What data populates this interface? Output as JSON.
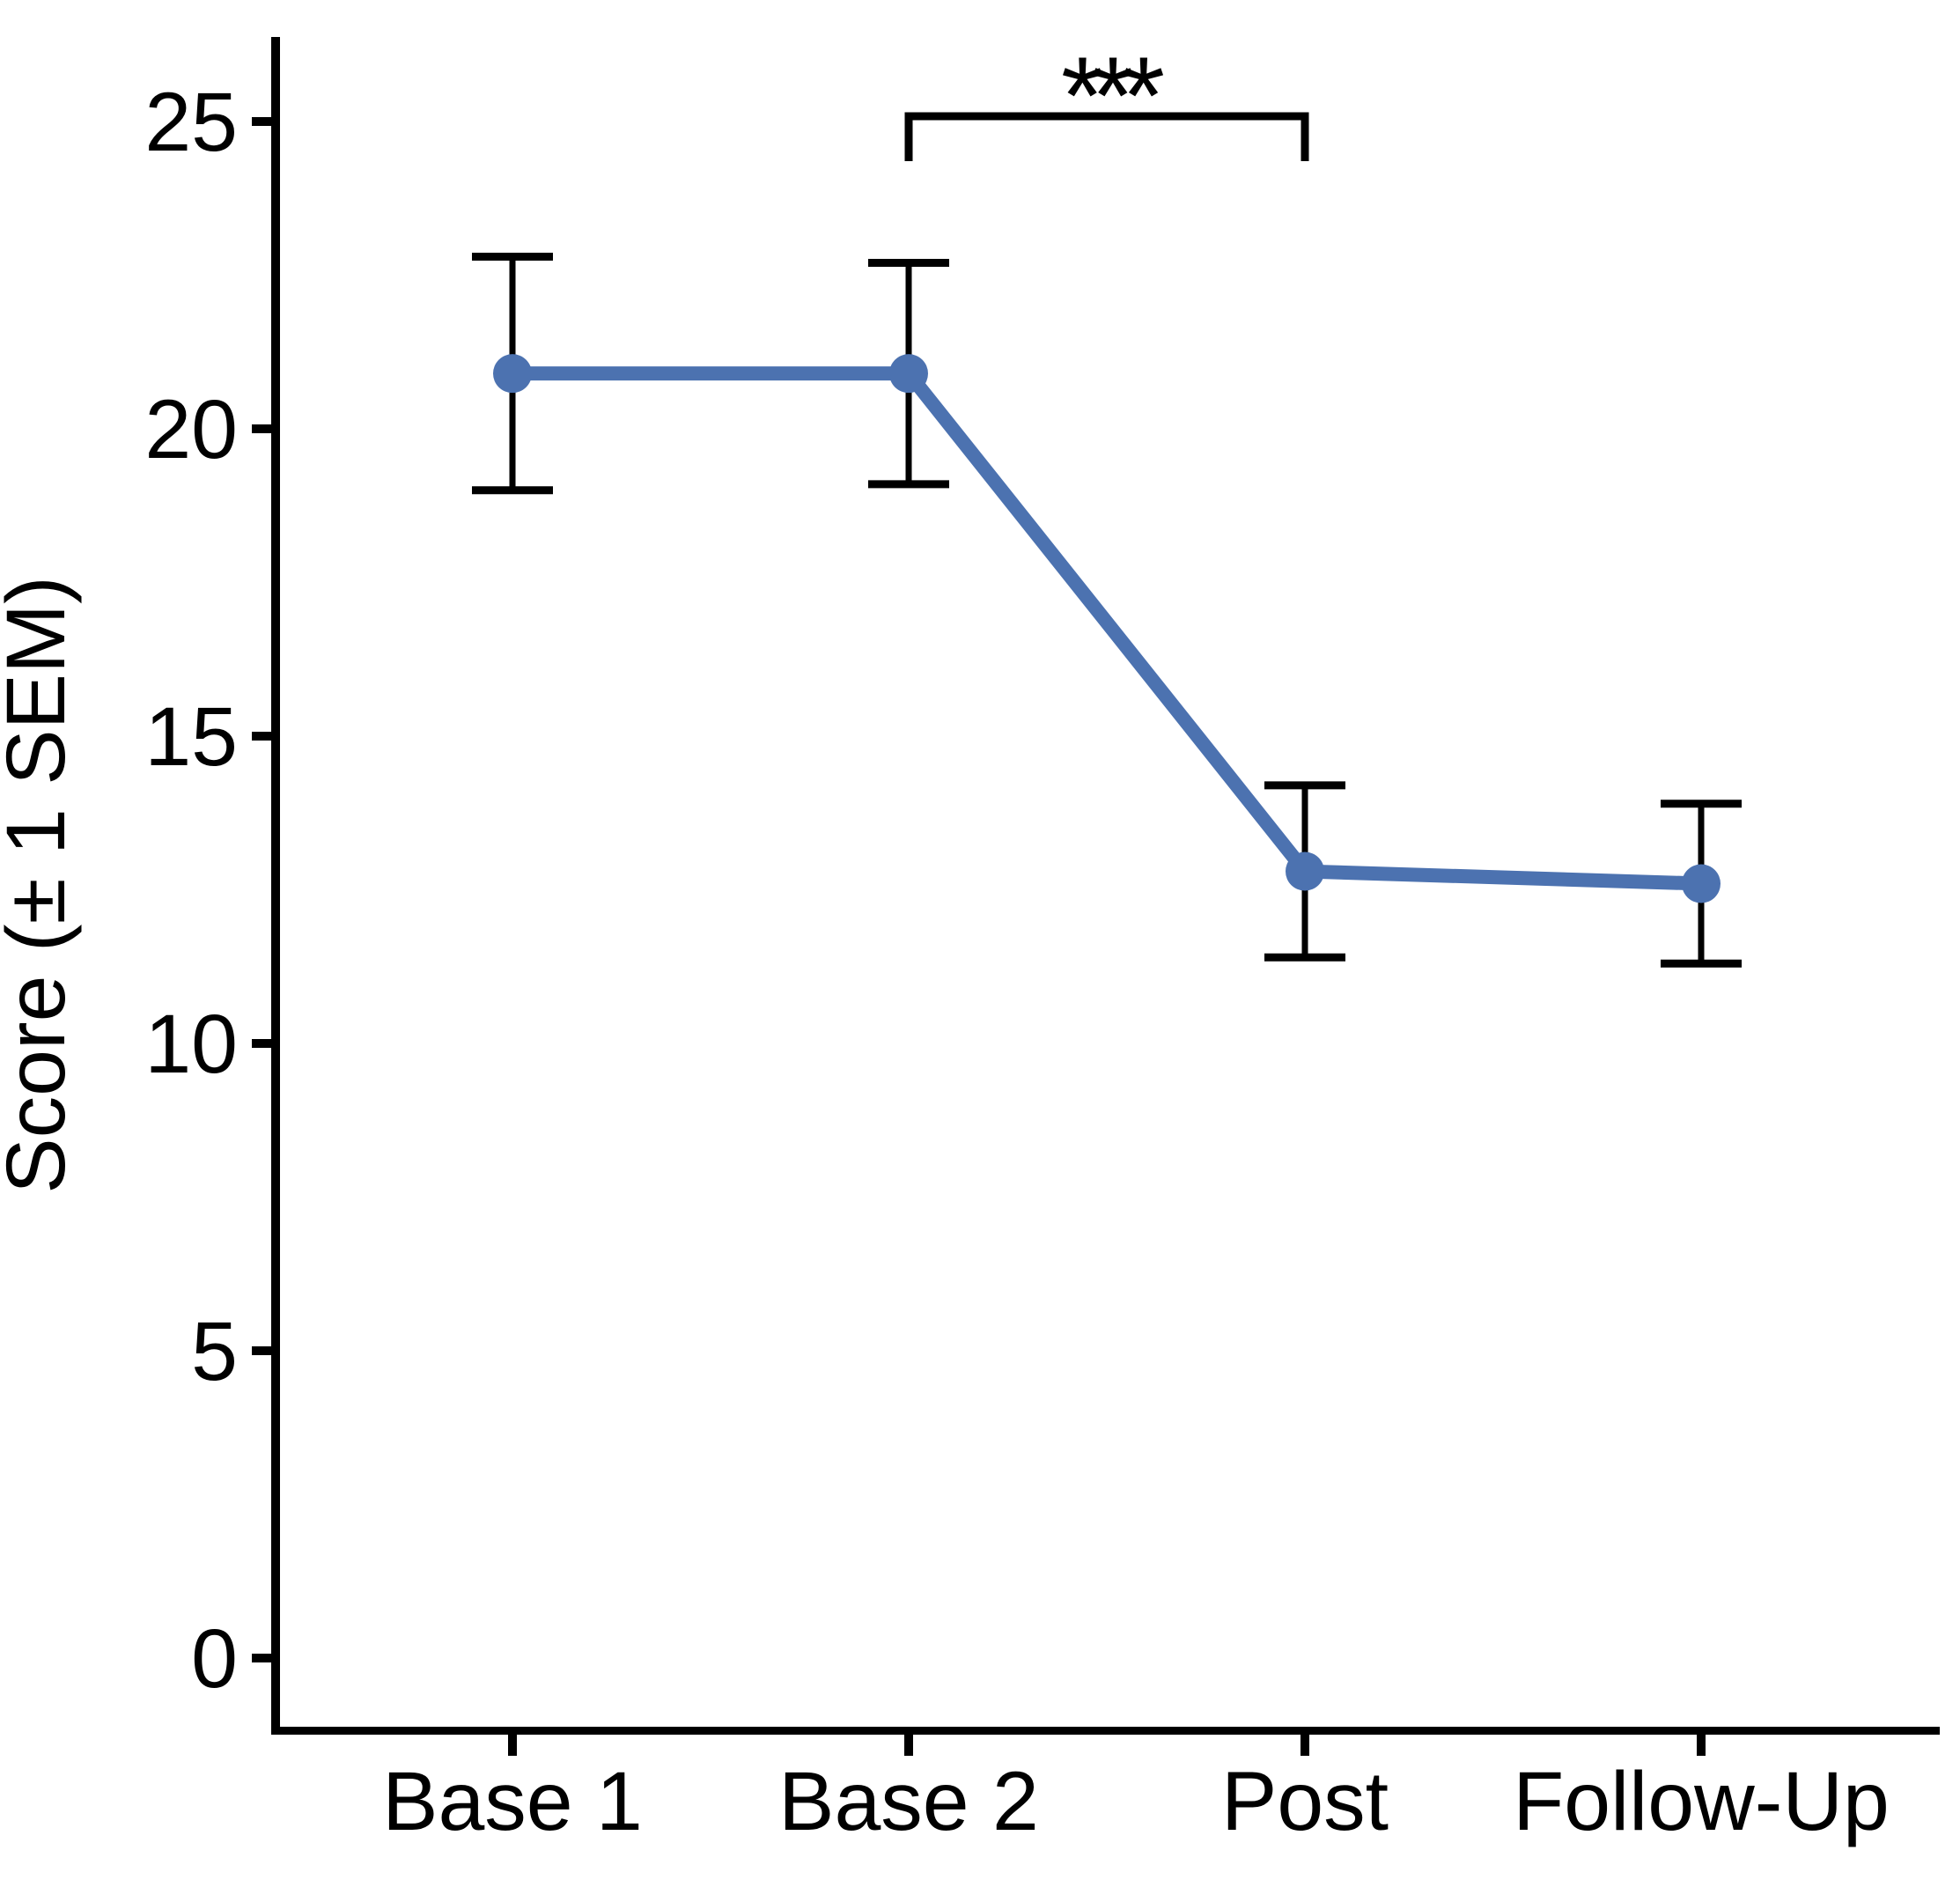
{
  "chart_data": {
    "type": "line",
    "title": "",
    "xlabel": "",
    "ylabel": "Score (± 1 SEM)",
    "categories": [
      "Base 1",
      "Base 2",
      "Post",
      "Follow-Up"
    ],
    "series": [
      {
        "name": "Score",
        "marker": "circle",
        "values": [
          20.9,
          20.9,
          12.8,
          12.6
        ],
        "error_upper": [
          22.8,
          22.7,
          14.2,
          13.9
        ],
        "error_lower": [
          19.0,
          19.1,
          11.4,
          11.3
        ],
        "color": "#4C72B0"
      }
    ],
    "error_bar_meaning": "± 1 SEM",
    "yticks": [
      0,
      5,
      10,
      15,
      20,
      25
    ],
    "ylim": [
      -1.3,
      26.4
    ],
    "grid": false,
    "legend": false,
    "significance": {
      "from": "Base 2",
      "to": "Post",
      "label": "***"
    }
  },
  "colors": {
    "line": "#4C72B0",
    "axis": "#000000",
    "text": "#000000"
  }
}
